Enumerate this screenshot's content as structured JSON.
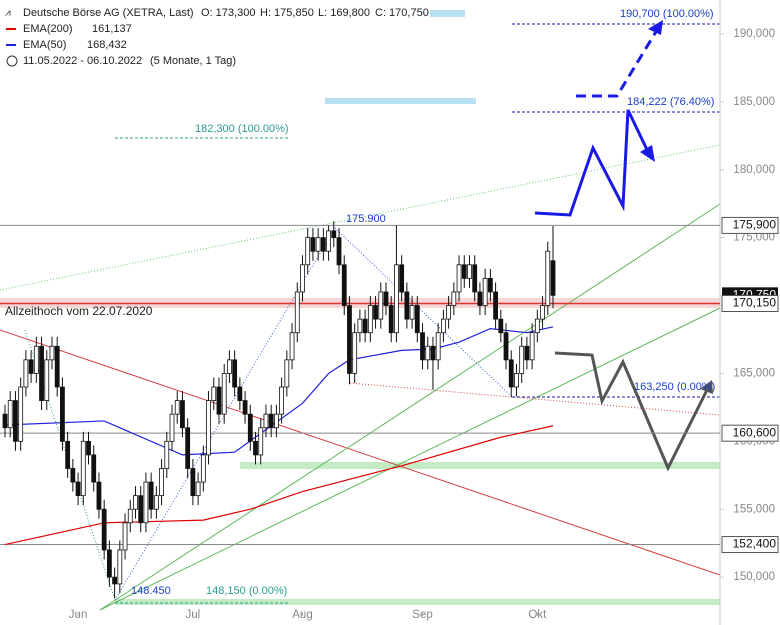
{
  "chart_data": {
    "type": "candlestick",
    "title": "Deutsche Börse AG (XETRA, Last)",
    "header_values": [
      "O: 173,300",
      "H: 175,850",
      "L: 169,800",
      "C: 170,750"
    ],
    "period": "11.05.2022 - 06.10.2022",
    "period_note": "(5 Monate, 1 Tag)",
    "indicators": [
      {
        "name": "EMA(200)",
        "label": "161,137",
        "color": "#e00000",
        "x": [
          0,
          19,
          38,
          47,
          57,
          76,
          95,
          105
        ],
        "values": [
          152.4,
          154,
          154.2,
          155,
          156.3,
          158.2,
          160.3,
          161.137
        ]
      },
      {
        "name": "EMA(50)",
        "label": "168,432",
        "color": "#2020dd",
        "x": [
          0,
          19,
          34,
          44,
          57,
          62,
          66,
          76,
          82,
          87,
          93,
          100,
          105
        ],
        "values": [
          161.2,
          161.5,
          159,
          159.2,
          162.8,
          165,
          166,
          166.7,
          166.8,
          167.3,
          168.3,
          168,
          168.432
        ]
      }
    ],
    "candles": [
      [
        162,
        162.7,
        160.3,
        161
      ],
      [
        161,
        163.7,
        160.3,
        163
      ],
      [
        163,
        163.7,
        159.3,
        160
      ],
      [
        160,
        164.7,
        159.3,
        164
      ],
      [
        164,
        166.7,
        163.3,
        166
      ],
      [
        166,
        166.7,
        164.3,
        165
      ],
      [
        165,
        167.7,
        164.3,
        167
      ],
      [
        167,
        167.7,
        162.3,
        163
      ],
      [
        163,
        166.7,
        162.3,
        166
      ],
      [
        166,
        167.7,
        165.3,
        167
      ],
      [
        167,
        167.7,
        163.3,
        164
      ],
      [
        164,
        164.7,
        159.3,
        160
      ],
      [
        160,
        160.7,
        157.3,
        158
      ],
      [
        158,
        158.7,
        156.3,
        157
      ],
      [
        157,
        157.7,
        155.3,
        156
      ],
      [
        156,
        160.7,
        155.3,
        160
      ],
      [
        160,
        160.7,
        158.3,
        159
      ],
      [
        159,
        159.7,
        156.3,
        157
      ],
      [
        157,
        157.7,
        154.3,
        155
      ],
      [
        155,
        155.7,
        151.3,
        152
      ],
      [
        152,
        152.7,
        149.3,
        150
      ],
      [
        150,
        150.7,
        148.45,
        149.5
      ],
      [
        149.5,
        152.7,
        148.8,
        152
      ],
      [
        152,
        154.7,
        151.3,
        154
      ],
      [
        154,
        155.7,
        153.3,
        155
      ],
      [
        155,
        156.7,
        154.3,
        156
      ],
      [
        156,
        156.7,
        153.3,
        154
      ],
      [
        154,
        157.7,
        153.3,
        157
      ],
      [
        157,
        157.7,
        154.3,
        155
      ],
      [
        155,
        156.7,
        154.3,
        156
      ],
      [
        156,
        158.7,
        155.3,
        158
      ],
      [
        158,
        160.7,
        157.3,
        160
      ],
      [
        160,
        162.7,
        159.3,
        162
      ],
      [
        162,
        163.7,
        161.3,
        163
      ],
      [
        163,
        163.7,
        160.3,
        161
      ],
      [
        161,
        161.7,
        157.3,
        158
      ],
      [
        158,
        158.7,
        155.3,
        156
      ],
      [
        156,
        157.7,
        155.3,
        157
      ],
      [
        157,
        159.7,
        156.3,
        159
      ],
      [
        159,
        163.7,
        158.3,
        163
      ],
      [
        163,
        164.7,
        162.3,
        164
      ],
      [
        164,
        164.7,
        161.3,
        162
      ],
      [
        162,
        165.7,
        161.3,
        165
      ],
      [
        165,
        166.7,
        164.3,
        166
      ],
      [
        166,
        166.7,
        163.3,
        164
      ],
      [
        164,
        164.7,
        162.3,
        163
      ],
      [
        163,
        163.7,
        161.3,
        162
      ],
      [
        162,
        162.7,
        159.3,
        160
      ],
      [
        160,
        160.7,
        158.3,
        159
      ],
      [
        159,
        161.7,
        158.3,
        161
      ],
      [
        161,
        162.7,
        160.3,
        162
      ],
      [
        162,
        162.7,
        160.3,
        161
      ],
      [
        161,
        162.7,
        160.3,
        162
      ],
      [
        162,
        164.7,
        161.3,
        164
      ],
      [
        164,
        166.7,
        163.3,
        166
      ],
      [
        166,
        168.7,
        165.3,
        168
      ],
      [
        168,
        171.7,
        167.3,
        171
      ],
      [
        171,
        173.7,
        170.3,
        173
      ],
      [
        173,
        175.7,
        172.3,
        175
      ],
      [
        175,
        175.7,
        173.3,
        174
      ],
      [
        174,
        175.7,
        173.3,
        175
      ],
      [
        175,
        175.7,
        173.3,
        174
      ],
      [
        174,
        175.9,
        173.3,
        175.5
      ],
      [
        175.5,
        176.2,
        174.3,
        175
      ],
      [
        175,
        175.7,
        172.3,
        173
      ],
      [
        173,
        173.7,
        169.3,
        170
      ],
      [
        170,
        170.7,
        164.2,
        165
      ],
      [
        165,
        168.7,
        164.3,
        168
      ],
      [
        168,
        169.7,
        167.3,
        169
      ],
      [
        169,
        169.7,
        167.3,
        168
      ],
      [
        168,
        170.7,
        167.3,
        170
      ],
      [
        170,
        170.7,
        168.3,
        169
      ],
      [
        169,
        171.7,
        168.3,
        171
      ],
      [
        171,
        171.7,
        169.3,
        170
      ],
      [
        170,
        170.7,
        167.3,
        168
      ],
      [
        168,
        175.9,
        167.3,
        173
      ],
      [
        173,
        173.7,
        170.3,
        171
      ],
      [
        171,
        171.7,
        168.3,
        169
      ],
      [
        169,
        170.7,
        168.3,
        170
      ],
      [
        170,
        170.7,
        167.3,
        168
      ],
      [
        168,
        168.7,
        165.3,
        166
      ],
      [
        166,
        167.7,
        165.3,
        167
      ],
      [
        167,
        167.7,
        163.8,
        166
      ],
      [
        166,
        168.7,
        165.3,
        168
      ],
      [
        168,
        169.7,
        167.3,
        169
      ],
      [
        169,
        170.7,
        168.3,
        170
      ],
      [
        170,
        171.7,
        169.3,
        171
      ],
      [
        171,
        173.7,
        170.3,
        173
      ],
      [
        173,
        173.7,
        171.3,
        172
      ],
      [
        172,
        173.7,
        171.3,
        173
      ],
      [
        173,
        173.7,
        170.3,
        171
      ],
      [
        171,
        171.7,
        169.3,
        170
      ],
      [
        170,
        172.7,
        169.3,
        172
      ],
      [
        172,
        172.7,
        170.3,
        171
      ],
      [
        171,
        171.7,
        168.3,
        169
      ],
      [
        169,
        169.7,
        167.3,
        168
      ],
      [
        168,
        168.7,
        165.3,
        166
      ],
      [
        166,
        166.7,
        163.25,
        164
      ],
      [
        164,
        165.7,
        163.3,
        165
      ],
      [
        165,
        167.7,
        164.3,
        167
      ],
      [
        167,
        167.7,
        165.3,
        166
      ],
      [
        166,
        168.7,
        165.3,
        168
      ],
      [
        168,
        169.7,
        167.3,
        169
      ],
      [
        169,
        170.7,
        168.3,
        170
      ],
      [
        170,
        174.7,
        169.3,
        174
      ],
      [
        173.3,
        175.85,
        169.8,
        170.75
      ]
    ],
    "xlim": [
      -0.96,
      137
    ],
    "xticks": [
      {
        "value": 14,
        "label": "Jun"
      },
      {
        "value": 36,
        "label": "Jul"
      },
      {
        "value": 57,
        "label": "Aug"
      },
      {
        "value": 80,
        "label": "Sep"
      },
      {
        "value": 102,
        "label": "Okt"
      }
    ],
    "ylim": [
      147.8,
      192.5
    ],
    "yticks": [
      {
        "value": 150,
        "label": "150,000"
      },
      {
        "value": 155,
        "label": "155,000"
      },
      {
        "value": 160,
        "label": "160,000"
      },
      {
        "value": 165,
        "label": "165,000"
      },
      {
        "value": 170,
        "label": "170,000"
      },
      {
        "value": 175,
        "label": "175,000"
      },
      {
        "value": 180,
        "label": "180,000"
      },
      {
        "value": 185,
        "label": "185,000"
      },
      {
        "value": 190,
        "label": "190,000"
      }
    ],
    "last_price": {
      "value": 170.75,
      "label": "170,750"
    },
    "levels": [
      {
        "value": 175.9,
        "label": "175,900"
      },
      {
        "value": 160.6,
        "label": "160,600"
      },
      {
        "value": 152.4,
        "label": "152,400"
      },
      {
        "value": 170.15,
        "label": "170,150"
      }
    ],
    "annotations": [
      "Allzeithoch vom 22.07.2020",
      "175.900",
      "182,300 (100.00%)",
      "190,700 (100.00%)",
      "184,222 (76.40%)",
      "163,250 (0.00%)",
      "148.450",
      "148,150 (0.00%)"
    ]
  }
}
